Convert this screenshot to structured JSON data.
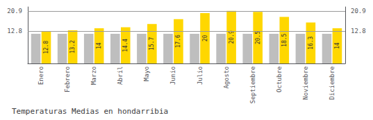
{
  "chart_data": {
    "type": "bar",
    "title": "Temperaturas Medias en hondarribia",
    "categories": [
      "Enero",
      "Febrero",
      "Marzo",
      "Abril",
      "Mayo",
      "Junio",
      "Julio",
      "Agosto",
      "Septiembre",
      "Octubre",
      "Noviembre",
      "Diciembre"
    ],
    "series": [
      {
        "color": "#BEBEBE",
        "values": [
          11.8,
          11.8,
          11.8,
          11.8,
          11.8,
          11.8,
          11.8,
          11.8,
          11.8,
          11.8,
          11.8,
          11.8
        ]
      },
      {
        "color": "#FFD700",
        "data_labels": true,
        "values": [
          12.8,
          13.2,
          14.0,
          14.4,
          15.7,
          17.6,
          20.0,
          20.9,
          20.5,
          18.5,
          16.3,
          14.0
        ]
      }
    ],
    "ylim": [
      0,
      22.5
    ],
    "yticks": [
      12.8,
      20.9
    ],
    "y2lim": [
      0,
      22.5
    ],
    "y2ticks": [
      12.8,
      20.9
    ],
    "grid": true
  }
}
